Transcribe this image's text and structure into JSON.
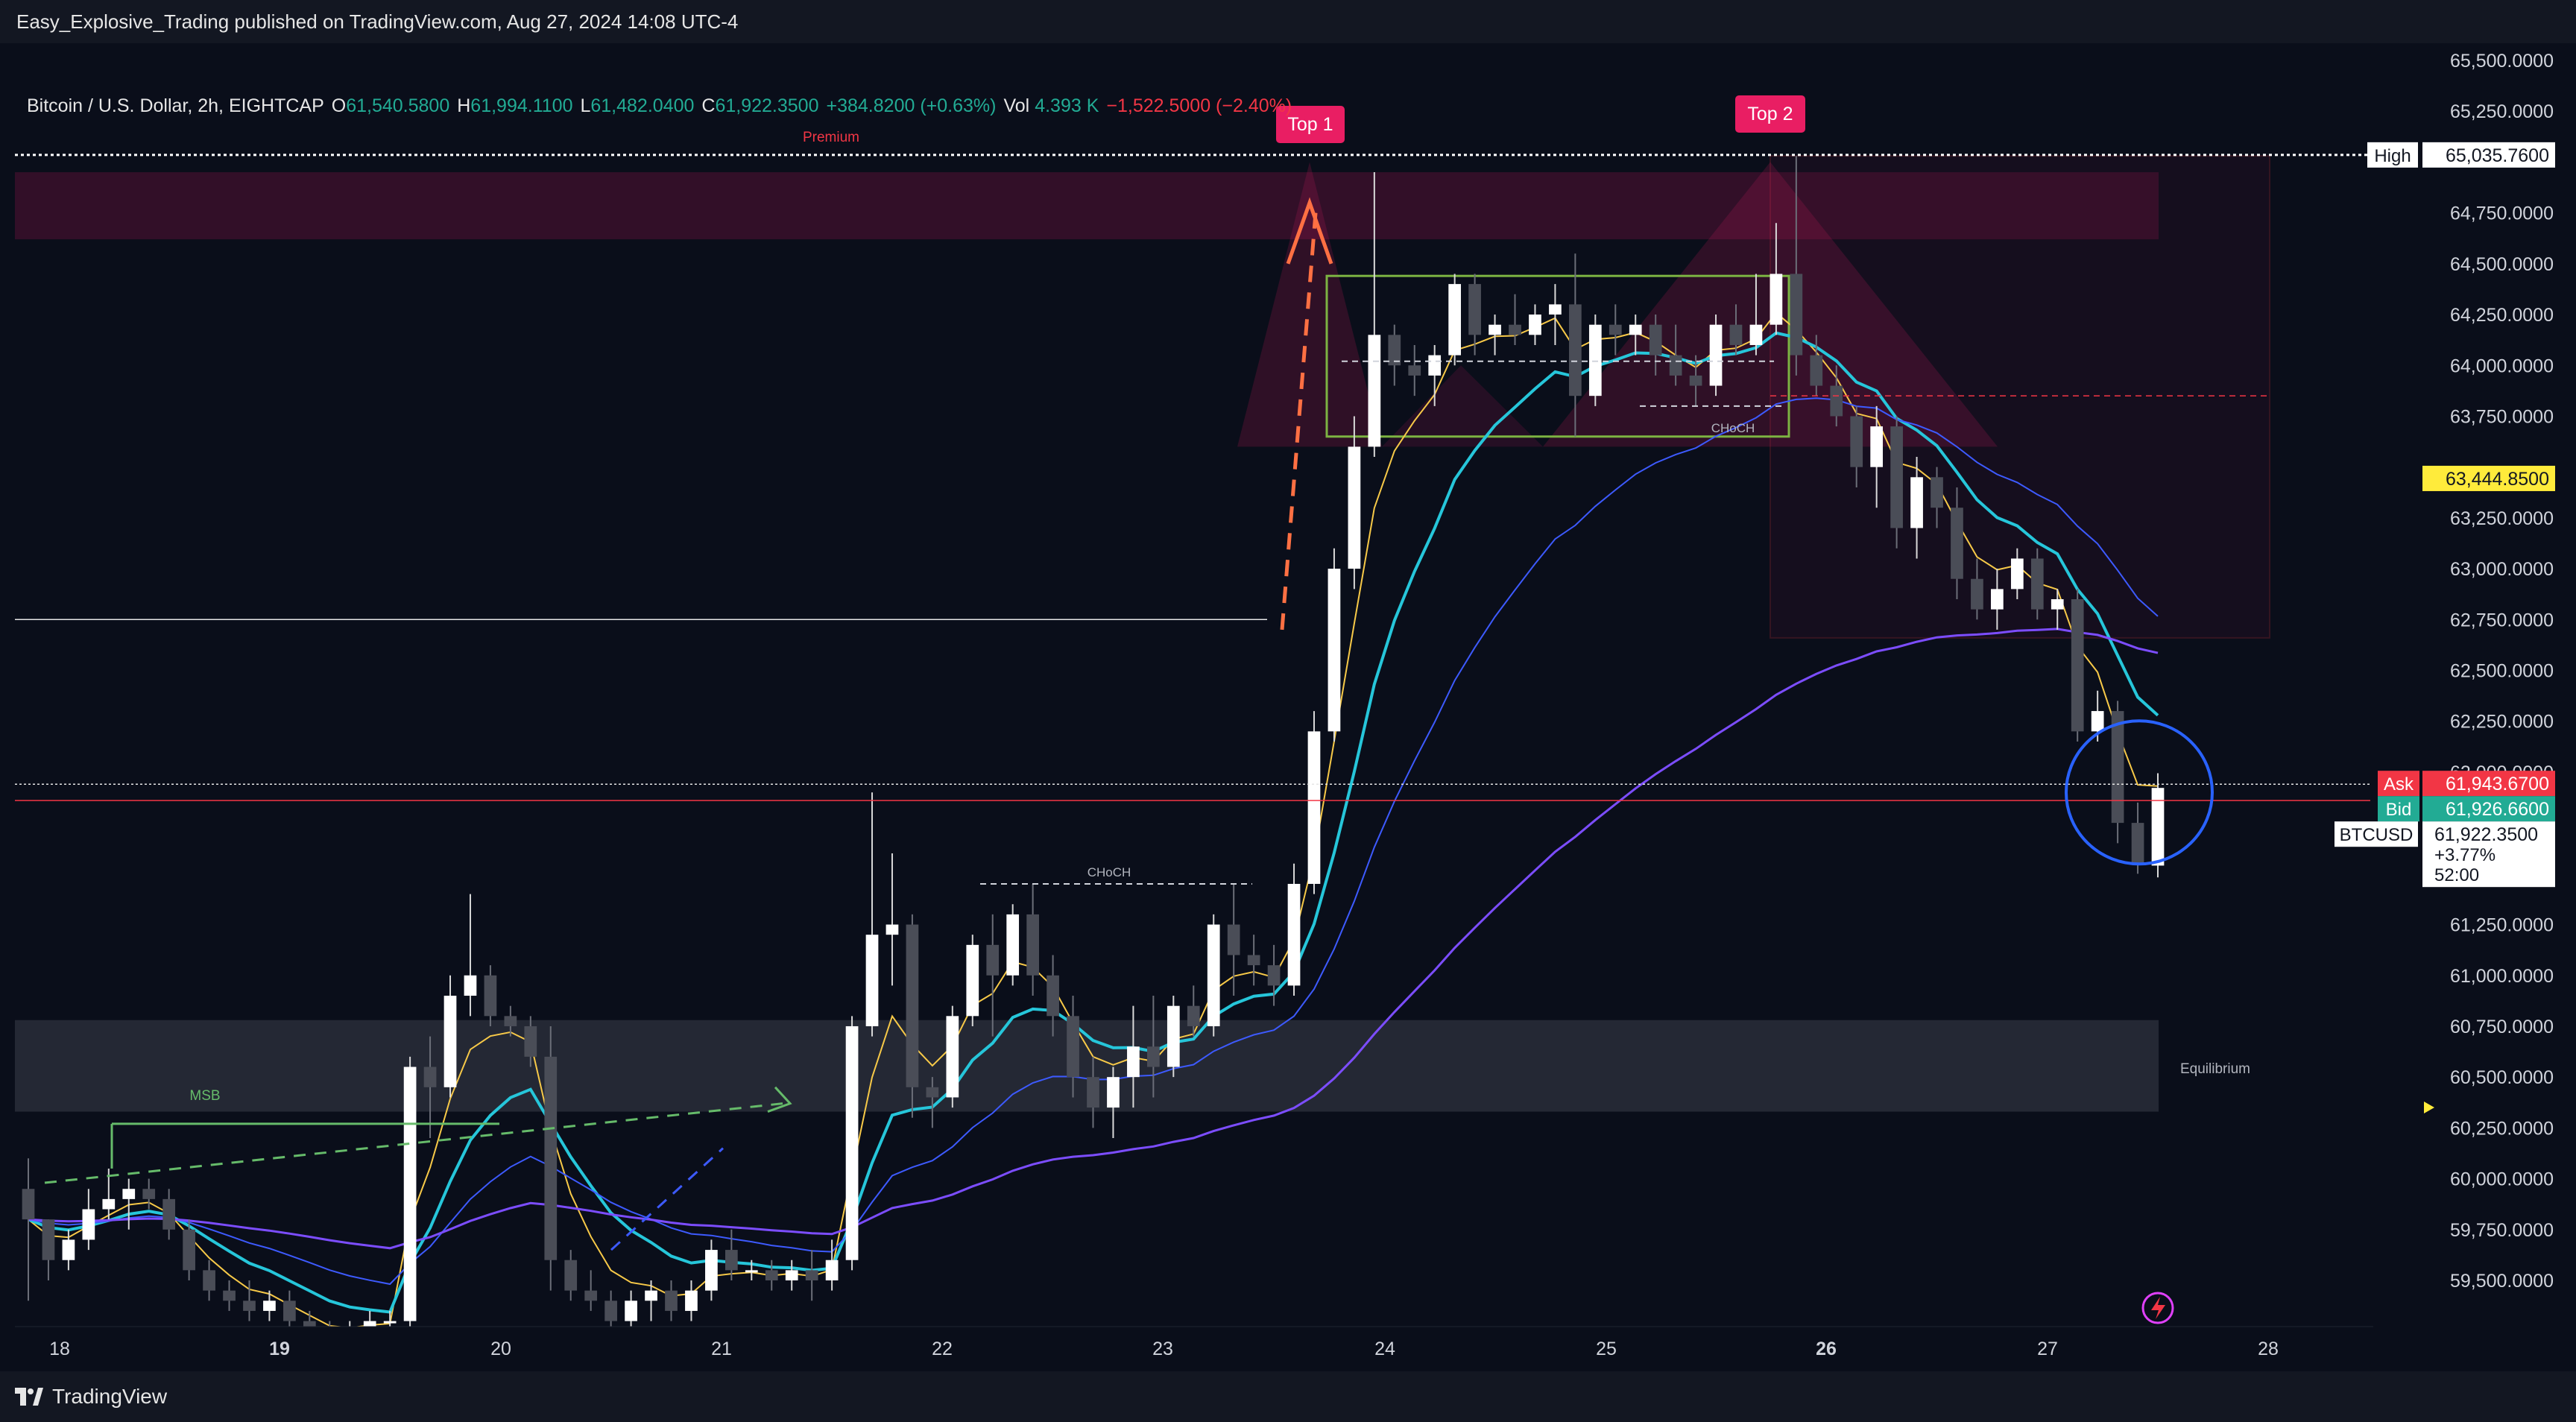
{
  "header": {
    "publisher": "Easy_Explosive_Trading published on TradingView.com, Aug 27, 2024 14:08 UTC-4"
  },
  "legend": {
    "symbol": "Bitcoin / U.S. Dollar, 2h, EIGHTCAP",
    "open_k": "O",
    "open": "61,540.5800",
    "high_k": "H",
    "high": "61,994.1100",
    "low_k": "L",
    "low": "61,482.0400",
    "close_k": "C",
    "close": "61,922.3500",
    "change": "+384.8200 (+0.63%)",
    "vol_k": "Vol",
    "vol": "4.393 K",
    "vol_change": "−1,522.5000 (−2.40%)"
  },
  "price_axis": {
    "ticks": [
      "65,500.0000",
      "65,250.0000",
      "64,750.0000",
      "64,500.0000",
      "64,250.0000",
      "64,000.0000",
      "63,750.0000",
      "63,250.0000",
      "63,000.0000",
      "62,750.0000",
      "62,500.0000",
      "62,250.0000",
      "62,000.0000",
      "61,250.0000",
      "61,000.0000",
      "60,750.0000",
      "60,500.0000",
      "60,250.0000",
      "60,000.0000",
      "59,750.0000",
      "59,500.0000"
    ],
    "tick_values": [
      65500,
      65250,
      64750,
      64500,
      64250,
      64000,
      63750,
      63250,
      63000,
      62750,
      62500,
      62250,
      62000,
      61250,
      61000,
      60750,
      60500,
      60250,
      60000,
      59750,
      59500
    ],
    "high_label": "High",
    "high_value": "65,035.7600",
    "level_label": "63,444.8500",
    "ask_label": "Ask",
    "ask_value": "61,943.6700",
    "bid_label": "Bid",
    "bid_value": "61,926.6600",
    "symbol_tag": "BTCUSD",
    "last_price": "61,922.3500",
    "last_change": "+3.77%",
    "countdown": "52:00"
  },
  "time_axis": {
    "labels": [
      "18",
      "19",
      "20",
      "21",
      "22",
      "23",
      "24",
      "25",
      "26",
      "27",
      "28"
    ]
  },
  "annotations": {
    "top1": "Top 1",
    "top2": "Top 2",
    "premium": "Premium",
    "equilibrium": "Equilibrium",
    "msb": "MSB",
    "choch_1": "CHoCH",
    "choch_2": "CHoCH"
  },
  "footer": {
    "brand": "TradingView"
  },
  "colors": {
    "background": "#0a0e1a",
    "bull_candle": "#ffffff",
    "bear_candle": "#4a4d57",
    "ema_fast": "#f7c948",
    "ema_mid": "#26c6da",
    "ema_slow": "#3d5afe",
    "ema_long": "#7c4dff",
    "ask": "#f23645",
    "bid": "#22ab94",
    "level": "#ffeb3b",
    "tag": "#e91e63"
  },
  "chart_data": {
    "type": "candlestick",
    "timeframe": "2h",
    "symbol": "BTCUSD",
    "ylim": [
      59200,
      65700
    ],
    "x_labels": [
      "18",
      "19",
      "20",
      "21",
      "22",
      "23",
      "24",
      "25",
      "26",
      "27",
      "28"
    ],
    "candles": [
      [
        59950,
        60100,
        59400,
        59800
      ],
      [
        59800,
        59800,
        59500,
        59600
      ],
      [
        59600,
        59750,
        59550,
        59700
      ],
      [
        59700,
        59950,
        59650,
        59850
      ],
      [
        59850,
        60050,
        59800,
        59900
      ],
      [
        59900,
        60000,
        59750,
        59950
      ],
      [
        59950,
        60000,
        59850,
        59900
      ],
      [
        59900,
        59950,
        59700,
        59750
      ],
      [
        59750,
        59800,
        59500,
        59550
      ],
      [
        59550,
        59600,
        59400,
        59450
      ],
      [
        59450,
        59500,
        59350,
        59400
      ],
      [
        59400,
        59500,
        59300,
        59350
      ],
      [
        59350,
        59450,
        59300,
        59400
      ],
      [
        59400,
        59450,
        59250,
        59300
      ],
      [
        59300,
        59350,
        59200,
        59250
      ],
      [
        59250,
        59300,
        59150,
        59200
      ],
      [
        59200,
        59300,
        59150,
        59250
      ],
      [
        59250,
        59350,
        59200,
        59300
      ],
      [
        59300,
        59350,
        59250,
        59300
      ],
      [
        59300,
        60600,
        59250,
        60550
      ],
      [
        60550,
        60700,
        60200,
        60450
      ],
      [
        60450,
        61000,
        60400,
        60900
      ],
      [
        60900,
        61400,
        60800,
        61000
      ],
      [
        61000,
        61050,
        60750,
        60800
      ],
      [
        60800,
        60850,
        60700,
        60750
      ],
      [
        60750,
        60800,
        60550,
        60600
      ],
      [
        60600,
        60750,
        59450,
        59600
      ],
      [
        59600,
        59650,
        59400,
        59450
      ],
      [
        59450,
        59550,
        59350,
        59400
      ],
      [
        59400,
        59450,
        59250,
        59300
      ],
      [
        59300,
        59450,
        59250,
        59400
      ],
      [
        59400,
        59500,
        59300,
        59450
      ],
      [
        59450,
        59500,
        59300,
        59350
      ],
      [
        59350,
        59500,
        59300,
        59450
      ],
      [
        59450,
        59700,
        59400,
        59650
      ],
      [
        59650,
        59750,
        59500,
        59550
      ],
      [
        59550,
        59600,
        59500,
        59550
      ],
      [
        59550,
        59600,
        59450,
        59500
      ],
      [
        59500,
        59600,
        59450,
        59550
      ],
      [
        59550,
        59650,
        59400,
        59500
      ],
      [
        59500,
        59700,
        59450,
        59600
      ],
      [
        59600,
        60800,
        59550,
        60750
      ],
      [
        60750,
        61900,
        60700,
        61200
      ],
      [
        61200,
        61600,
        60950,
        61250
      ],
      [
        61250,
        61300,
        60300,
        60450
      ],
      [
        60450,
        60500,
        60250,
        60400
      ],
      [
        60400,
        60850,
        60350,
        60800
      ],
      [
        60800,
        61200,
        60750,
        61150
      ],
      [
        61150,
        61300,
        60700,
        61000
      ],
      [
        61000,
        61350,
        60950,
        61300
      ],
      [
        61300,
        61450,
        60900,
        61000
      ],
      [
        61000,
        61100,
        60700,
        60800
      ],
      [
        60800,
        60900,
        60400,
        60500
      ],
      [
        60500,
        60600,
        60250,
        60350
      ],
      [
        60350,
        60550,
        60200,
        60500
      ],
      [
        60500,
        60850,
        60350,
        60650
      ],
      [
        60650,
        60900,
        60400,
        60550
      ],
      [
        60550,
        60900,
        60500,
        60850
      ],
      [
        60850,
        60950,
        60700,
        60750
      ],
      [
        60750,
        61300,
        60700,
        61250
      ],
      [
        61250,
        61450,
        60900,
        61100
      ],
      [
        61100,
        61200,
        60950,
        61050
      ],
      [
        61050,
        61150,
        60850,
        60950
      ],
      [
        60950,
        61550,
        60900,
        61450
      ],
      [
        61450,
        62300,
        61400,
        62200
      ],
      [
        62200,
        63100,
        62150,
        63000
      ],
      [
        63000,
        63750,
        62900,
        63600
      ],
      [
        63600,
        64950,
        63550,
        64150
      ],
      [
        64150,
        64200,
        63900,
        64000
      ],
      [
        64000,
        64100,
        63850,
        63950
      ],
      [
        63950,
        64100,
        63800,
        64050
      ],
      [
        64050,
        64450,
        64000,
        64400
      ],
      [
        64400,
        64450,
        64050,
        64150
      ],
      [
        64150,
        64250,
        64050,
        64200
      ],
      [
        64200,
        64350,
        64100,
        64150
      ],
      [
        64150,
        64300,
        64100,
        64250
      ],
      [
        64250,
        64400,
        64100,
        64300
      ],
      [
        64300,
        64550,
        63650,
        63850
      ],
      [
        63850,
        64250,
        63800,
        64200
      ],
      [
        64200,
        64300,
        64050,
        64150
      ],
      [
        64150,
        64250,
        64050,
        64200
      ],
      [
        64200,
        64250,
        63950,
        64050
      ],
      [
        64050,
        64200,
        63900,
        63950
      ],
      [
        63950,
        64050,
        63800,
        63900
      ],
      [
        63900,
        64250,
        63850,
        64200
      ],
      [
        64200,
        64300,
        64050,
        64100
      ],
      [
        64100,
        64450,
        64050,
        64200
      ],
      [
        64200,
        64700,
        64150,
        64450
      ],
      [
        64450,
        65030,
        63950,
        64050
      ],
      [
        64050,
        64150,
        63850,
        63900
      ],
      [
        63900,
        64000,
        63700,
        63750
      ],
      [
        63750,
        63800,
        63400,
        63500
      ],
      [
        63500,
        63800,
        63300,
        63700
      ],
      [
        63700,
        63750,
        63100,
        63200
      ],
      [
        63200,
        63550,
        63050,
        63450
      ],
      [
        63450,
        63500,
        63200,
        63300
      ],
      [
        63300,
        63400,
        62850,
        62950
      ],
      [
        62950,
        63050,
        62750,
        62800
      ],
      [
        62800,
        63000,
        62700,
        62900
      ],
      [
        62900,
        63100,
        62850,
        63050
      ],
      [
        63050,
        63100,
        62750,
        62800
      ],
      [
        62800,
        62900,
        62700,
        62850
      ],
      [
        62850,
        62900,
        62150,
        62200
      ],
      [
        62200,
        62400,
        62150,
        62300
      ],
      [
        62300,
        62350,
        61650,
        61750
      ],
      [
        61750,
        61850,
        61500,
        61550
      ],
      [
        61540,
        61994,
        61482,
        61922
      ]
    ]
  }
}
